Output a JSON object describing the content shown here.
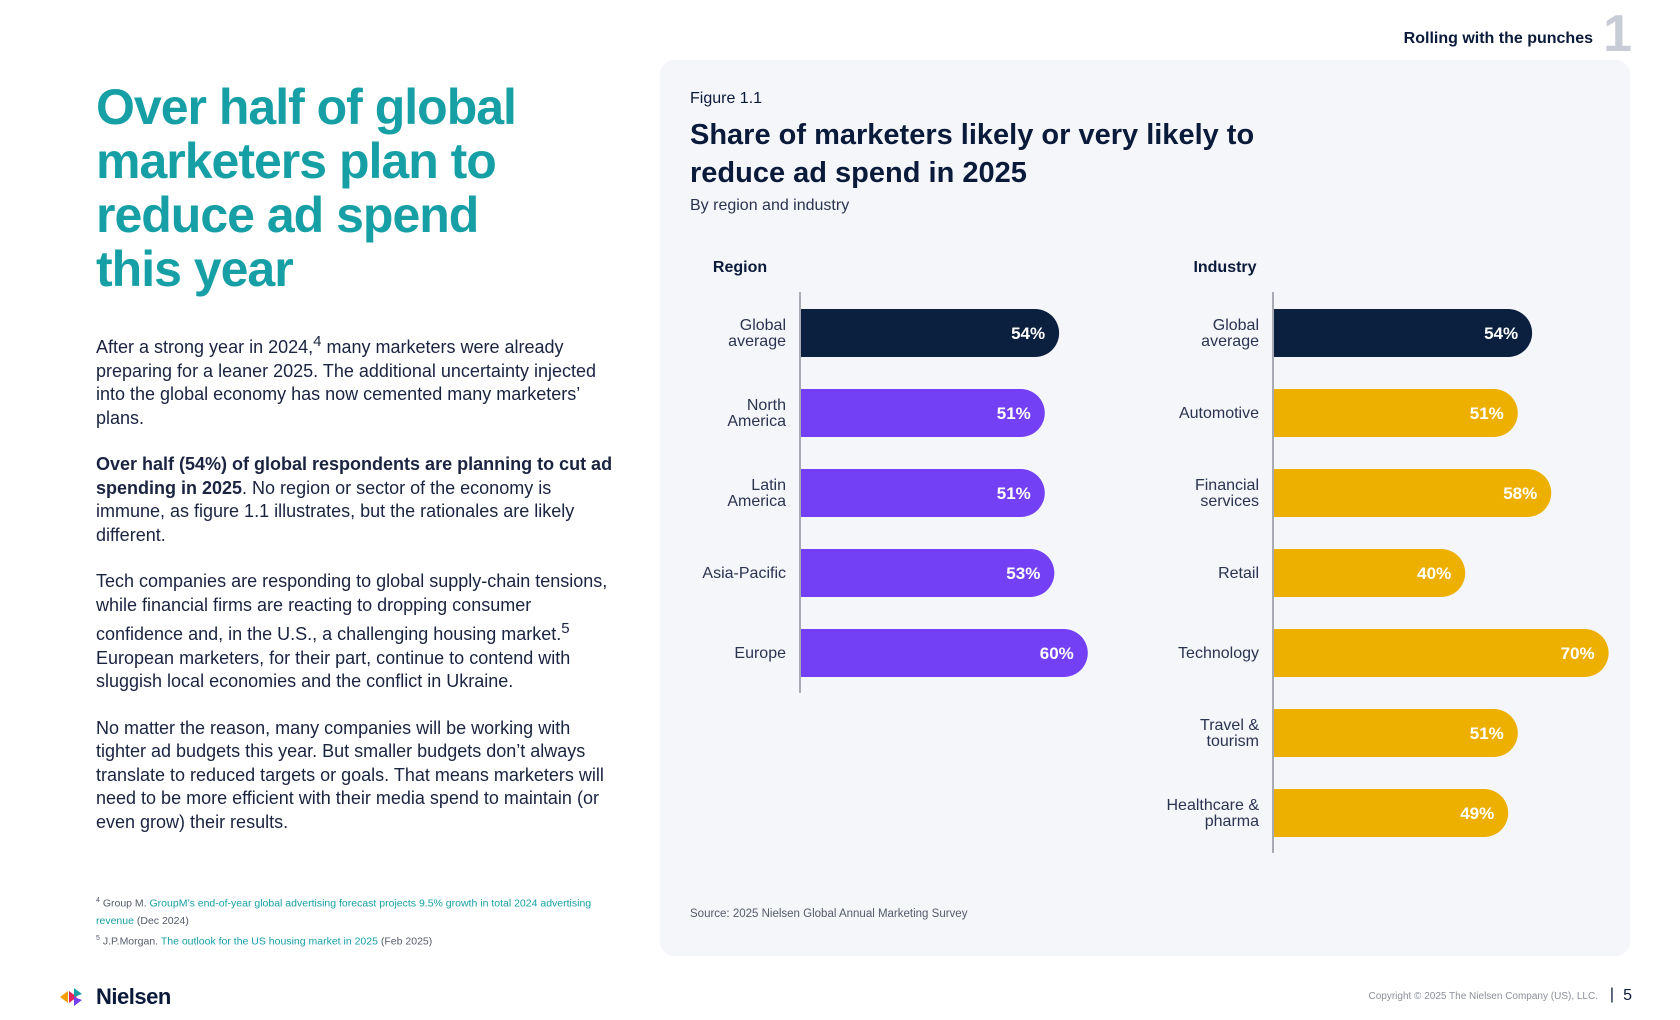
{
  "header": {
    "section_title": "Rolling with the punches",
    "section_number": "1"
  },
  "headline": "Over half of global marketers plan to reduce ad spend this year",
  "body": {
    "p1_part1": "After a strong year in 2024,",
    "p1_sup": "4",
    "p1_part2": " many marketers were already preparing for a leaner 2025. The additional uncertainty injected into the global economy has now cemented many marketers’ plans.",
    "p2_bold": "Over half (54%) of global respondents are planning to cut ad spending in 2025",
    "p2_rest": ". No region or sector of the economy is immune, as figure 1.1 illustrates, but the rationales are likely different.",
    "p3_part1": "Tech companies are responding to global supply-chain tensions, while financial firms are reacting to dropping consumer confidence and, in the U.S., a challenging housing market.",
    "p3_sup": "5",
    "p3_part2": " European marketers, for their part, continue to contend with sluggish local economies and the conflict in Ukraine.",
    "p4": "No matter the reason, many companies will be working with tighter ad budgets this year. But smaller budgets don’t always translate to reduced targets or goals. That means marketers will need to be more efficient with their media spend to maintain (or even grow) their results."
  },
  "footnotes": {
    "f4_num": "4",
    "f4_prefix": "Group M.",
    "f4_link": "GroupM’s end-of-year global advertising forecast projects 9.5% growth in total 2024 advertising revenue",
    "f4_suffix": "(Dec 2024)",
    "f5_num": "5",
    "f5_prefix": "J.P.Morgan.",
    "f5_link": "The outlook for the US housing market in 2025",
    "f5_suffix": "(Feb 2025)"
  },
  "figure": {
    "label": "Figure 1.1",
    "title": "Share of marketers likely or very likely to reduce ad spend in 2025",
    "subtitle": "By region and industry",
    "source": "Source: 2025 Nielsen Global Annual Marketing Survey"
  },
  "footer": {
    "logo_text": "Nielsen",
    "copyright": "Copyright © 2025 The Nielsen Company (US), LLC.",
    "separator": "|",
    "page_number": "5"
  },
  "colors": {
    "headline": "#16a0a6",
    "navy": "#0b1f3f",
    "purple": "#7340f5",
    "gold": "#eeb000",
    "panel": "#f5f6f9"
  },
  "chart_data": [
    {
      "type": "bar",
      "orientation": "horizontal",
      "title": "Region",
      "categories": [
        "Global\naverage",
        "North\nAmerica",
        "Latin\nAmerica",
        "Asia-Pacific",
        "Europe"
      ],
      "values": [
        54,
        51,
        51,
        53,
        60
      ],
      "data_labels": [
        "54%",
        "51%",
        "51%",
        "53%",
        "60%"
      ],
      "bar_colors": [
        "#0b1f3f",
        "#7340f5",
        "#7340f5",
        "#7340f5",
        "#7340f5"
      ],
      "xlim": [
        0,
        100
      ],
      "grid": false
    },
    {
      "type": "bar",
      "orientation": "horizontal",
      "title": "Industry",
      "categories": [
        "Global\naverage",
        "Automotive",
        "Financial\nservices",
        "Retail",
        "Technology",
        "Travel &\ntourism",
        "Healthcare &\npharma"
      ],
      "values": [
        54,
        51,
        58,
        40,
        70,
        51,
        49
      ],
      "data_labels": [
        "54%",
        "51%",
        "58%",
        "40%",
        "70%",
        "51%",
        "49%"
      ],
      "bar_colors": [
        "#0b1f3f",
        "#eeb000",
        "#eeb000",
        "#eeb000",
        "#eeb000",
        "#eeb000",
        "#eeb000"
      ],
      "xlim": [
        0,
        100
      ],
      "grid": false
    }
  ]
}
